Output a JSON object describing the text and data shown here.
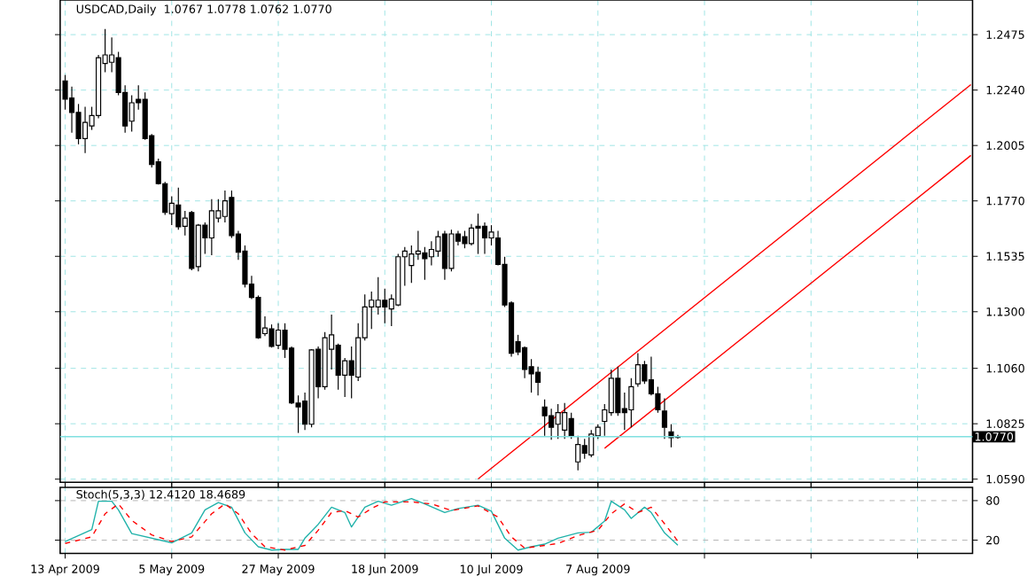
{
  "chart_data": [
    {
      "type": "candlestick",
      "title": "USDCAD,Daily",
      "annotations": [
        "1.0767 1.0778 1.0762 1.0770"
      ],
      "categories": [
        null,
        null,
        null,
        null,
        null,
        null,
        null,
        null,
        null,
        null,
        null,
        null,
        null,
        null,
        null,
        null,
        null,
        null,
        null,
        null,
        null,
        null,
        null,
        null,
        null,
        null,
        null,
        null,
        null,
        null,
        null,
        null,
        null,
        null,
        null,
        null,
        null,
        null,
        null,
        null,
        null,
        null,
        null,
        null,
        null,
        null,
        null,
        null,
        null,
        null,
        null,
        null,
        null,
        null,
        null,
        null,
        null,
        null,
        null,
        null,
        null,
        null,
        null,
        null,
        null,
        null,
        null,
        null,
        null,
        null,
        null,
        null,
        null,
        null,
        null,
        null,
        null,
        null,
        null,
        null,
        null,
        null,
        null,
        null,
        null,
        null,
        null,
        null,
        null,
        null,
        null,
        null,
        null,
        null,
        null,
        null,
        null,
        null,
        null,
        null,
        null,
        null,
        null,
        null,
        null,
        null,
        null,
        null,
        null,
        null,
        null,
        null,
        null,
        null,
        null,
        null,
        null,
        null,
        null,
        null,
        null,
        null,
        null,
        null,
        null,
        null,
        null,
        null,
        null,
        null,
        null,
        null,
        null,
        null,
        null,
        null,
        null
      ],
      "ohlc": [
        [
          1.2279,
          1.2304,
          1.2157,
          1.2201
        ],
        [
          1.2206,
          1.2255,
          1.2059,
          1.2145
        ],
        [
          1.2145,
          1.2181,
          1.201,
          1.2034
        ],
        [
          1.2034,
          1.2169,
          1.1973,
          1.2103
        ],
        [
          1.2088,
          1.2169,
          1.2071,
          1.2132
        ],
        [
          1.2132,
          1.2389,
          1.212,
          1.2377
        ],
        [
          1.2353,
          1.2499,
          1.2316,
          1.2389
        ],
        [
          1.2358,
          1.2463,
          1.2316,
          1.2389
        ],
        [
          1.2377,
          1.2402,
          1.2218,
          1.223
        ],
        [
          1.223,
          1.226,
          1.2059,
          1.2088
        ],
        [
          1.2108,
          1.2218,
          1.2064,
          1.2186
        ],
        [
          1.2201,
          1.226,
          1.2157,
          1.2186
        ],
        [
          1.2201,
          1.223,
          1.2029,
          1.2034
        ],
        [
          1.2047,
          1.2054,
          1.1912,
          1.1924
        ],
        [
          1.1936,
          1.1949,
          1.1839,
          1.1843
        ],
        [
          1.1843,
          1.1851,
          1.1711,
          1.1721
        ],
        [
          1.1716,
          1.179,
          1.1667,
          1.176
        ],
        [
          1.1753,
          1.1826,
          1.1648,
          1.166
        ],
        [
          1.1662,
          1.1728,
          1.1623,
          1.1697
        ],
        [
          1.1721,
          1.1728,
          1.1476,
          1.1484
        ],
        [
          1.1491,
          1.1672,
          1.1471,
          1.1667
        ],
        [
          1.1667,
          1.1679,
          1.1545,
          1.1613
        ],
        [
          1.1613,
          1.1777,
          1.154,
          1.1728
        ],
        [
          1.1697,
          1.1777,
          1.1679,
          1.1728
        ],
        [
          1.1704,
          1.1814,
          1.1679,
          1.177
        ],
        [
          1.1785,
          1.1814,
          1.1613,
          1.1623
        ],
        [
          1.163,
          1.1643,
          1.152,
          1.1552
        ],
        [
          1.1557,
          1.1581,
          1.1403,
          1.1417
        ],
        [
          1.1417,
          1.1452,
          1.1354,
          1.1361
        ],
        [
          1.1361,
          1.1369,
          1.1185,
          1.119
        ],
        [
          1.1207,
          1.128,
          1.1197,
          1.1231
        ],
        [
          1.1227,
          1.1246,
          1.1148,
          1.1153
        ],
        [
          1.1158,
          1.1251,
          1.1141,
          1.1222
        ],
        [
          1.1222,
          1.1251,
          1.1104,
          1.1141
        ],
        [
          1.1146,
          1.1153,
          1.0908,
          1.0913
        ],
        [
          1.0913,
          1.0945,
          1.0786,
          1.0896
        ],
        [
          1.0921,
          1.0957,
          1.0798,
          1.0823
        ],
        [
          1.0823,
          1.1141,
          1.081,
          1.1138
        ],
        [
          1.1141,
          1.1153,
          1.0933,
          1.0982
        ],
        [
          1.0982,
          1.1214,
          1.0969,
          1.119
        ],
        [
          1.1141,
          1.1288,
          1.1055,
          1.1202
        ],
        [
          1.1158,
          1.1165,
          1.0969,
          1.1031
        ],
        [
          1.1031,
          1.1104,
          1.0938,
          1.1092
        ],
        [
          1.1092,
          1.1153,
          1.0933,
          1.1031
        ],
        [
          1.1023,
          1.1251,
          1.1006,
          1.119
        ],
        [
          1.119,
          1.1373,
          1.1178,
          1.132
        ],
        [
          1.132,
          1.1386,
          1.1227,
          1.1349
        ],
        [
          1.132,
          1.1447,
          1.1288,
          1.1349
        ],
        [
          1.1349,
          1.1398,
          1.1251,
          1.132
        ],
        [
          1.1312,
          1.1373,
          1.1239,
          1.1354
        ],
        [
          1.1329,
          1.1545,
          1.1324,
          1.1533
        ],
        [
          1.1533,
          1.1574,
          1.141,
          1.1557
        ],
        [
          1.1496,
          1.1581,
          1.1422,
          1.1545
        ],
        [
          1.1545,
          1.1643,
          1.152,
          1.1557
        ],
        [
          1.155,
          1.1574,
          1.1435,
          1.1525
        ],
        [
          1.1533,
          1.1599,
          1.1496,
          1.1564
        ],
        [
          1.1557,
          1.1643,
          1.1533,
          1.1618
        ],
        [
          1.163,
          1.1643,
          1.1435,
          1.1484
        ],
        [
          1.1484,
          1.1648,
          1.1471,
          1.163
        ],
        [
          1.163,
          1.1643,
          1.1581,
          1.1599
        ],
        [
          1.1618,
          1.1643,
          1.1569,
          1.1589
        ],
        [
          1.1589,
          1.1672,
          1.1581,
          1.1655
        ],
        [
          1.1662,
          1.1716,
          1.1545,
          1.1655
        ],
        [
          1.1662,
          1.1679,
          1.1545,
          1.1613
        ],
        [
          1.1613,
          1.1667,
          1.1581,
          1.1638
        ],
        [
          1.1613,
          1.1643,
          1.1496,
          1.1501
        ],
        [
          1.1501,
          1.1533,
          1.132,
          1.1329
        ],
        [
          1.1337,
          1.1344,
          1.1109,
          1.1124
        ],
        [
          1.1173,
          1.1202,
          1.1116,
          1.1129
        ],
        [
          1.1148,
          1.1153,
          1.1018,
          1.1055
        ],
        [
          1.1067,
          1.1099,
          1.0957,
          1.1036
        ],
        [
          1.1043,
          1.1067,
          1.0945,
          1.1001
        ],
        [
          1.0896,
          1.0928,
          1.0774,
          1.0859
        ],
        [
          1.0859,
          1.0889,
          1.0757,
          1.081
        ],
        [
          1.0823,
          1.0908,
          1.0761,
          1.0872
        ],
        [
          1.0798,
          1.0913,
          1.0761,
          1.0872
        ],
        [
          1.0847,
          1.0872,
          1.0761,
          1.0774
        ],
        [
          1.0663,
          1.0774,
          1.0627,
          1.0737
        ],
        [
          1.0732,
          1.0761,
          1.0676,
          1.07
        ],
        [
          1.0693,
          1.0798,
          1.0683,
          1.0781
        ],
        [
          1.0774,
          1.0823,
          1.0761,
          1.081
        ],
        [
          1.0835,
          1.0908,
          1.0774,
          1.0884
        ],
        [
          1.0872,
          1.1055,
          1.0859,
          1.1018
        ],
        [
          1.1018,
          1.1067,
          1.0859,
          1.0872
        ],
        [
          1.0889,
          1.0957,
          1.0798,
          1.0872
        ],
        [
          1.0884,
          1.1018,
          1.081,
          1.0982
        ],
        [
          1.0994,
          1.1124,
          1.0982,
          1.1075
        ],
        [
          1.1075,
          1.1092,
          1.0994,
          1.1006
        ],
        [
          1.1011,
          1.1109,
          1.0945,
          1.0952
        ],
        [
          1.0952,
          1.0982,
          1.0872,
          1.0884
        ],
        [
          1.0879,
          1.0933,
          1.0761,
          1.081
        ],
        [
          1.0791,
          1.0823,
          1.0725,
          1.0766
        ],
        [
          1.0767,
          1.0778,
          1.0762,
          1.077
        ],
        null,
        null,
        null,
        null,
        null,
        null,
        null,
        null,
        null,
        null,
        null,
        null,
        null,
        null,
        null,
        null,
        null,
        null,
        null,
        null,
        null,
        null,
        null,
        null,
        null,
        null,
        null,
        null,
        null,
        null,
        null,
        null,
        null,
        null,
        null,
        null,
        null,
        null,
        null,
        null,
        null,
        null,
        null,
        null
      ],
      "ylim": [
        1.0577,
        1.2622
      ],
      "yticks": [
        {
          "value": 1.059,
          "label": "1.0590"
        },
        1.0825,
        {
          "value": 1.106,
          "label": "1.1060"
        },
        {
          "value": 1.13,
          "label": "1.1300"
        },
        1.1535,
        {
          "value": 1.177,
          "label": "1.1770"
        },
        1.2005,
        {
          "value": 1.224,
          "label": "1.2240"
        },
        1.2475
      ],
      "grid": true,
      "tick_labels": "y",
      "ref_lines": [
        {
          "axis": "y",
          "value": 1.077,
          "label": "1.0770",
          "color": "#80e0e0"
        }
      ],
      "series": [
        {
          "type": "line",
          "color": "#ff0000",
          "values": [
            null,
            null,
            null,
            null,
            null,
            null,
            null,
            null,
            null,
            null,
            null,
            null,
            null,
            null,
            null,
            null,
            null,
            null,
            null,
            null,
            null,
            null,
            null,
            null,
            null,
            null,
            null,
            null,
            null,
            null,
            null,
            null,
            null,
            null,
            null,
            null,
            null,
            null,
            null,
            null,
            null,
            null,
            null,
            null,
            null,
            null,
            null,
            null,
            null,
            null,
            null,
            null,
            null,
            null,
            null,
            null,
            null,
            null,
            null,
            null,
            null,
            null,
            1.0591,
            null,
            null,
            null,
            null,
            null,
            null,
            null,
            null,
            null,
            null,
            null,
            null,
            null,
            null,
            null,
            null,
            null,
            null,
            null,
            null,
            null,
            null,
            null,
            null,
            null,
            null,
            null,
            null,
            null,
            null,
            null,
            null,
            null,
            null,
            null,
            null,
            null,
            null,
            null,
            null,
            null,
            null,
            null,
            null,
            null,
            null,
            null,
            null,
            null,
            null,
            null,
            null,
            null,
            null,
            null,
            null,
            null,
            null,
            null,
            null,
            null,
            null,
            null,
            null,
            null,
            null,
            null,
            null,
            null,
            null,
            null,
            null,
            null,
            1.2263
          ]
        },
        {
          "type": "line",
          "color": "#ff0000",
          "values": [
            null,
            null,
            null,
            null,
            null,
            null,
            null,
            null,
            null,
            null,
            null,
            null,
            null,
            null,
            null,
            null,
            null,
            null,
            null,
            null,
            null,
            null,
            null,
            null,
            null,
            null,
            null,
            null,
            null,
            null,
            null,
            null,
            null,
            null,
            null,
            null,
            null,
            null,
            null,
            null,
            null,
            null,
            null,
            null,
            null,
            null,
            null,
            null,
            null,
            null,
            null,
            null,
            null,
            null,
            null,
            null,
            null,
            null,
            null,
            null,
            null,
            null,
            null,
            null,
            null,
            null,
            null,
            null,
            null,
            null,
            null,
            null,
            null,
            null,
            null,
            null,
            null,
            null,
            null,
            null,
            null,
            1.0721,
            null,
            null,
            null,
            null,
            null,
            null,
            null,
            null,
            null,
            null,
            null,
            null,
            null,
            null,
            null,
            null,
            null,
            null,
            null,
            null,
            null,
            null,
            null,
            null,
            null,
            null,
            null,
            null,
            null,
            null,
            null,
            null,
            null,
            null,
            null,
            null,
            null,
            null,
            null,
            null,
            null,
            null,
            null,
            null,
            null,
            null,
            null,
            null,
            null,
            null,
            null,
            null,
            null,
            null,
            1.1963
          ]
        }
      ]
    },
    {
      "type": "line",
      "title": "Stoch(5,3,3) 12.4120 18.4689",
      "categories": [
        "13 Apr 2009",
        null,
        null,
        null,
        null,
        null,
        null,
        null,
        null,
        null,
        null,
        null,
        null,
        null,
        null,
        null,
        "5 May 2009",
        null,
        null,
        null,
        null,
        null,
        null,
        null,
        null,
        null,
        null,
        null,
        null,
        null,
        null,
        null,
        "27 May 2009",
        null,
        null,
        null,
        null,
        null,
        null,
        null,
        null,
        null,
        null,
        null,
        null,
        null,
        null,
        null,
        "18 Jun 2009",
        null,
        null,
        null,
        null,
        null,
        null,
        null,
        null,
        null,
        null,
        null,
        null,
        null,
        null,
        null,
        "10 Jul 2009",
        null,
        null,
        null,
        null,
        null,
        null,
        null,
        null,
        null,
        null,
        null,
        null,
        null,
        null,
        null,
        "7 Aug 2009",
        null,
        null,
        null,
        null,
        null,
        null,
        null,
        null,
        null,
        null,
        null,
        null,
        null,
        null,
        null,
        null,
        null,
        null,
        null,
        null,
        null,
        null,
        null,
        null,
        null,
        null,
        null,
        null,
        null,
        null,
        null,
        null,
        null,
        null,
        null,
        null,
        null,
        null,
        null,
        null,
        null,
        null,
        null,
        null,
        null,
        null,
        null,
        null,
        null,
        null,
        null,
        null,
        null,
        null,
        null,
        null
      ],
      "ylim": [
        0,
        100
      ],
      "yticks": [
        20,
        80
      ],
      "grid": true,
      "series": [
        {
          "color": "#20b2aa",
          "line_style": "solid",
          "values": [
            18,
            null,
            null,
            null,
            36,
            79,
            null,
            79,
            66,
            null,
            30,
            null,
            null,
            23,
            null,
            null,
            16,
            null,
            null,
            31,
            null,
            66,
            null,
            77,
            null,
            70,
            null,
            31,
            null,
            10,
            null,
            5,
            null,
            6,
            null,
            6,
            23,
            null,
            44,
            null,
            70,
            null,
            62,
            40,
            null,
            70,
            null,
            79,
            null,
            73,
            null,
            null,
            83,
            null,
            75,
            null,
            null,
            62,
            null,
            68,
            null,
            null,
            73,
            null,
            64,
            null,
            23,
            null,
            5,
            null,
            10,
            null,
            14,
            null,
            23,
            null,
            null,
            31,
            null,
            32,
            null,
            49,
            79,
            null,
            66,
            53,
            null,
            70,
            62,
            null,
            31,
            null,
            12.412,
            null,
            null,
            null,
            null,
            null,
            null,
            null,
            null,
            null,
            null,
            null,
            null,
            null,
            null,
            null,
            null,
            null,
            null,
            null,
            null,
            null,
            null,
            null,
            null,
            null,
            null,
            null,
            null,
            null,
            null,
            null,
            null,
            null,
            null,
            null,
            null,
            null,
            null,
            null,
            null,
            null,
            null,
            null,
            null
          ]
        },
        {
          "color": "#ff0000",
          "line_style": "dashed",
          "values": [
            15,
            null,
            null,
            null,
            25,
            null,
            60,
            null,
            75,
            null,
            50,
            null,
            null,
            28,
            null,
            null,
            18,
            null,
            null,
            25,
            null,
            null,
            60,
            null,
            75,
            null,
            60,
            null,
            30,
            null,
            10,
            null,
            null,
            5,
            null,
            null,
            12,
            null,
            35,
            null,
            62,
            null,
            65,
            null,
            55,
            null,
            68,
            null,
            78,
            null,
            null,
            null,
            78,
            null,
            null,
            75,
            null,
            null,
            65,
            null,
            null,
            null,
            72,
            null,
            null,
            55,
            null,
            25,
            null,
            8,
            null,
            null,
            12,
            null,
            15,
            null,
            null,
            27,
            null,
            null,
            35,
            null,
            60,
            null,
            75,
            null,
            62,
            null,
            70,
            null,
            45,
            null,
            18.4689,
            null,
            null,
            null,
            null,
            null,
            null,
            null,
            null,
            null,
            null,
            null,
            null,
            null,
            null,
            null,
            null,
            null,
            null,
            null,
            null,
            null,
            null,
            null,
            null,
            null,
            null,
            null,
            null,
            null,
            null,
            null,
            null,
            null,
            null,
            null,
            null,
            null,
            null,
            null,
            null,
            null,
            null,
            null,
            null
          ]
        }
      ]
    }
  ]
}
